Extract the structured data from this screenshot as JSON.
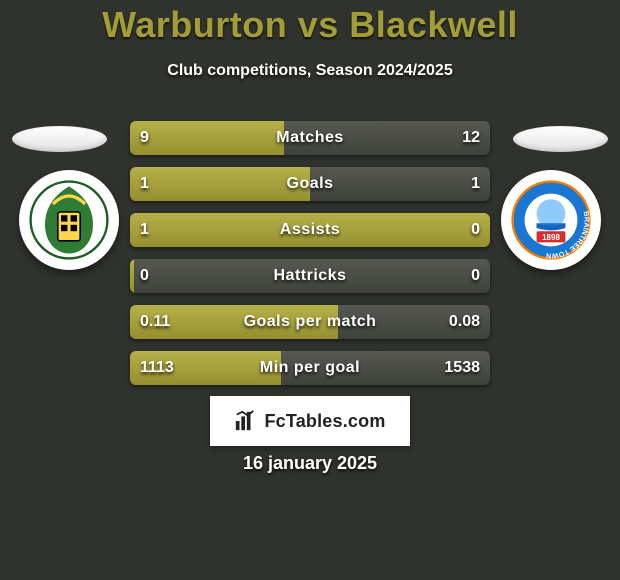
{
  "title": "Warburton vs Blackwell",
  "subtitle": "Club competitions, Season 2024/2025",
  "date": "16 january 2025",
  "colors": {
    "background": "#30332d",
    "title": "#a39d36",
    "text": "#ffffff",
    "bar_a": "#a39d36",
    "bar_b": "#4a4d47"
  },
  "badges": {
    "left": {
      "name": "Solihull Moors",
      "crest_primary": "#2e7d32",
      "crest_secondary": "#ffd54f",
      "crest_tertiary": "#000000"
    },
    "right": {
      "name": "Braintree Town",
      "crest_primary": "#1976d2",
      "crest_secondary": "#ffffff",
      "crest_ring": "#f57c00",
      "crest_text": "1898"
    }
  },
  "footer": {
    "label": "FcTables.com"
  },
  "bars": [
    {
      "label": "Matches",
      "left_val": "9",
      "right_val": "12",
      "left_pct": 42.86
    },
    {
      "label": "Goals",
      "left_val": "1",
      "right_val": "1",
      "left_pct": 50.0
    },
    {
      "label": "Assists",
      "left_val": "1",
      "right_val": "0",
      "left_pct": 100.0
    },
    {
      "label": "Hattricks",
      "left_val": "0",
      "right_val": "0",
      "left_pct": 1.0
    },
    {
      "label": "Goals per match",
      "left_val": "0.11",
      "right_val": "0.08",
      "left_pct": 57.89
    },
    {
      "label": "Min per goal",
      "left_val": "1113",
      "right_val": "1538",
      "left_pct": 41.98
    }
  ]
}
